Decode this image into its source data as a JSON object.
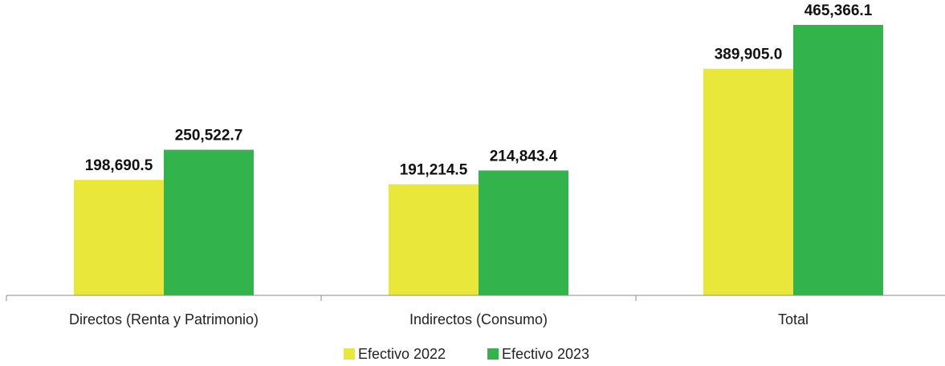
{
  "chart_data": {
    "type": "bar",
    "title": "",
    "xlabel": "",
    "ylabel": "",
    "categories": [
      "Directos (Renta y Patrimonio)",
      "Indirectos (Consumo)",
      "Total"
    ],
    "series": [
      {
        "name": "Efectivo 2022",
        "color": "#EAE73B",
        "values": [
          198690.5,
          191214.5,
          389905.0
        ],
        "labels": [
          "198,690.5",
          "191,214.5",
          "389,905.0"
        ]
      },
      {
        "name": "Efectivo 2023",
        "color": "#33B34C",
        "values": [
          250522.7,
          214843.4,
          465366.1
        ],
        "labels": [
          "250,522.7",
          "214,843.4",
          "465,366.1"
        ]
      }
    ],
    "ylim": [
      0,
      475000
    ],
    "grid": false,
    "legend": "bottom-center"
  }
}
